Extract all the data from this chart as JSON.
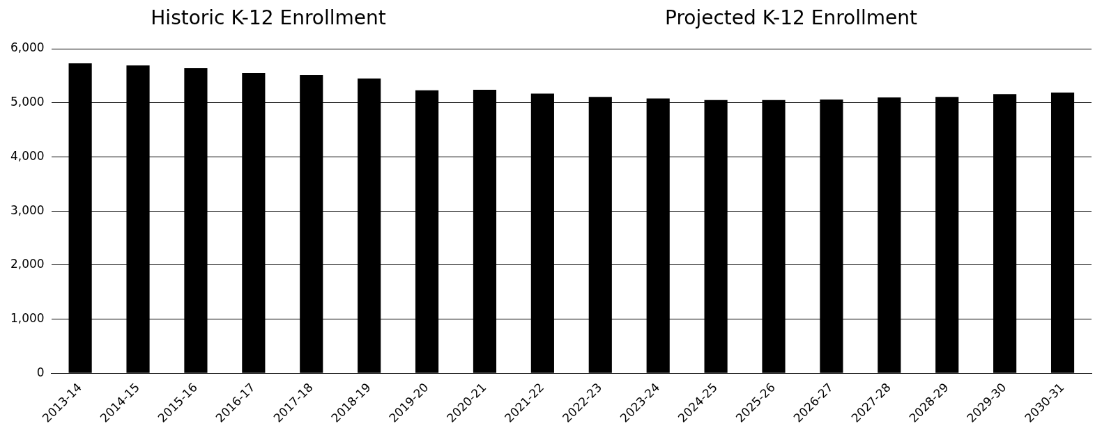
{
  "chart_data": {
    "type": "bar",
    "title": "Historic K-12 Enrollment",
    "subtitle": "Projected K-12 Enrollment",
    "categories": [
      "2013-14",
      "2014-15",
      "2015-16",
      "2016-17",
      "2017-18",
      "2018-19",
      "2019-20",
      "2020-21",
      "2021-22",
      "2022-23",
      "2023-24",
      "2024-25",
      "2025-26",
      "2026-27",
      "2027-28",
      "2028-29",
      "2029-30",
      "2030-31"
    ],
    "values": [
      5730,
      5690,
      5640,
      5550,
      5510,
      5450,
      5230,
      5240,
      5170,
      5110,
      5080,
      5050,
      5050,
      5060,
      5100,
      5110,
      5160,
      5190
    ],
    "color": "#000000",
    "ylim": [
      0,
      6000
    ],
    "yticks": [
      0,
      {
        "value": 1000,
        "label": "1,000"
      },
      {
        "value": 2000,
        "label": "2,000"
      },
      {
        "value": 3000,
        "label": "3,000"
      },
      {
        "value": 4000,
        "label": "4,000"
      },
      {
        "value": 5000,
        "label": "5,000"
      },
      {
        "value": 6000,
        "label": "6,000"
      }
    ],
    "grid": "y",
    "legend": false
  }
}
